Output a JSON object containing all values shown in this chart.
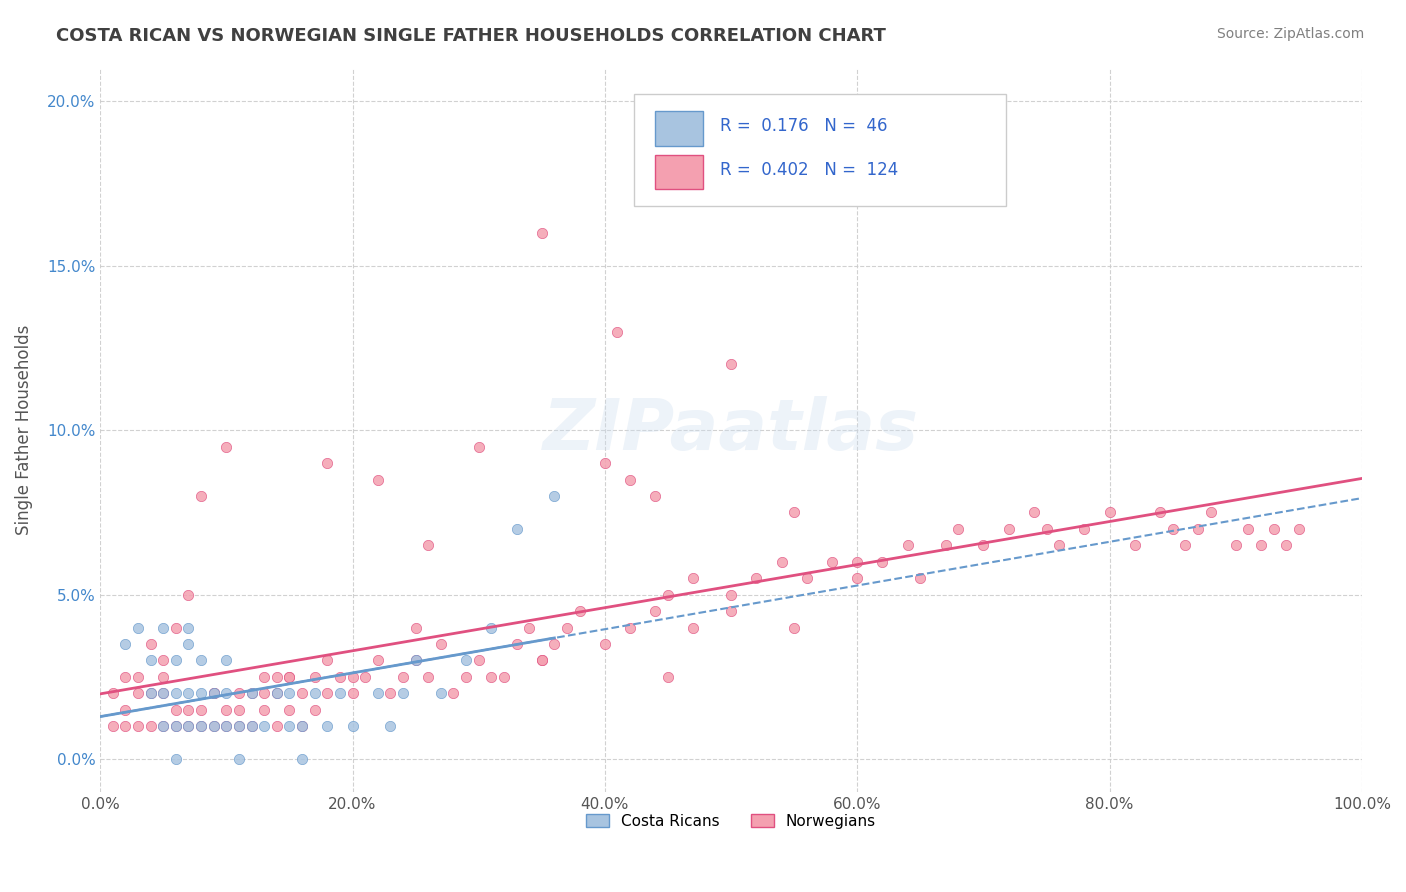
{
  "title": "COSTA RICAN VS NORWEGIAN SINGLE FATHER HOUSEHOLDS CORRELATION CHART",
  "source": "Source: ZipAtlas.com",
  "ylabel": "Single Father Households",
  "xlim": [
    0.0,
    1.0
  ],
  "ylim": [
    -0.01,
    0.21
  ],
  "xtick_labels": [
    "0.0%",
    "20.0%",
    "40.0%",
    "60.0%",
    "80.0%",
    "100.0%"
  ],
  "xtick_vals": [
    0.0,
    0.2,
    0.4,
    0.6,
    0.8,
    1.0
  ],
  "ytick_labels": [
    "0.0%",
    "5.0%",
    "10.0%",
    "15.0%",
    "20.0%"
  ],
  "ytick_vals": [
    0.0,
    0.05,
    0.1,
    0.15,
    0.2
  ],
  "legend_label1": "Costa Ricans",
  "legend_label2": "Norwegians",
  "color1": "#a8c4e0",
  "color2": "#f4a0b0",
  "line_color1": "#6699cc",
  "line_color2": "#e05080",
  "r1": 0.176,
  "n1": 46,
  "r2": 0.402,
  "n2": 124,
  "background_color": "#ffffff",
  "grid_color": "#cccccc",
  "title_color": "#404040",
  "source_color": "#808080",
  "costa_rican_x": [
    0.02,
    0.03,
    0.04,
    0.04,
    0.05,
    0.05,
    0.05,
    0.06,
    0.06,
    0.06,
    0.06,
    0.07,
    0.07,
    0.07,
    0.07,
    0.08,
    0.08,
    0.08,
    0.09,
    0.09,
    0.1,
    0.1,
    0.1,
    0.11,
    0.11,
    0.12,
    0.12,
    0.13,
    0.14,
    0.15,
    0.15,
    0.16,
    0.16,
    0.17,
    0.18,
    0.19,
    0.2,
    0.22,
    0.23,
    0.24,
    0.25,
    0.27,
    0.29,
    0.31,
    0.33,
    0.36
  ],
  "costa_rican_y": [
    0.035,
    0.04,
    0.02,
    0.03,
    0.01,
    0.02,
    0.04,
    0.0,
    0.01,
    0.02,
    0.03,
    0.01,
    0.02,
    0.035,
    0.04,
    0.01,
    0.02,
    0.03,
    0.01,
    0.02,
    0.01,
    0.02,
    0.03,
    0.0,
    0.01,
    0.01,
    0.02,
    0.01,
    0.02,
    0.01,
    0.02,
    0.0,
    0.01,
    0.02,
    0.01,
    0.02,
    0.01,
    0.02,
    0.01,
    0.02,
    0.03,
    0.02,
    0.03,
    0.04,
    0.07,
    0.08
  ],
  "norwegian_x": [
    0.01,
    0.01,
    0.02,
    0.02,
    0.03,
    0.03,
    0.04,
    0.04,
    0.05,
    0.05,
    0.05,
    0.06,
    0.06,
    0.07,
    0.07,
    0.08,
    0.08,
    0.09,
    0.09,
    0.1,
    0.1,
    0.11,
    0.11,
    0.12,
    0.12,
    0.13,
    0.13,
    0.14,
    0.14,
    0.15,
    0.15,
    0.16,
    0.16,
    0.17,
    0.17,
    0.18,
    0.18,
    0.19,
    0.2,
    0.21,
    0.22,
    0.23,
    0.24,
    0.25,
    0.26,
    0.27,
    0.28,
    0.29,
    0.3,
    0.31,
    0.32,
    0.33,
    0.34,
    0.35,
    0.36,
    0.37,
    0.38,
    0.4,
    0.42,
    0.44,
    0.45,
    0.47,
    0.5,
    0.52,
    0.54,
    0.56,
    0.58,
    0.6,
    0.62,
    0.64,
    0.65,
    0.67,
    0.68,
    0.7,
    0.72,
    0.74,
    0.75,
    0.76,
    0.78,
    0.8,
    0.82,
    0.84,
    0.85,
    0.86,
    0.87,
    0.88,
    0.9,
    0.91,
    0.92,
    0.93,
    0.94,
    0.95,
    0.04,
    0.06,
    0.08,
    0.1,
    0.14,
    0.18,
    0.22,
    0.26,
    0.3,
    0.35,
    0.41,
    0.47,
    0.4,
    0.42,
    0.44,
    0.5,
    0.55,
    0.6,
    0.02,
    0.03,
    0.05,
    0.07,
    0.09,
    0.11,
    0.13,
    0.15,
    0.2,
    0.25,
    0.35,
    0.45,
    0.5,
    0.55
  ],
  "norwegian_y": [
    0.01,
    0.02,
    0.015,
    0.025,
    0.01,
    0.02,
    0.01,
    0.02,
    0.01,
    0.02,
    0.03,
    0.01,
    0.015,
    0.01,
    0.015,
    0.01,
    0.015,
    0.01,
    0.02,
    0.01,
    0.015,
    0.01,
    0.02,
    0.01,
    0.02,
    0.015,
    0.025,
    0.01,
    0.02,
    0.015,
    0.025,
    0.01,
    0.02,
    0.015,
    0.025,
    0.02,
    0.03,
    0.025,
    0.02,
    0.025,
    0.03,
    0.02,
    0.025,
    0.03,
    0.025,
    0.035,
    0.02,
    0.025,
    0.03,
    0.025,
    0.025,
    0.035,
    0.04,
    0.03,
    0.035,
    0.04,
    0.045,
    0.035,
    0.04,
    0.045,
    0.05,
    0.04,
    0.05,
    0.055,
    0.06,
    0.055,
    0.06,
    0.055,
    0.06,
    0.065,
    0.055,
    0.065,
    0.07,
    0.065,
    0.07,
    0.075,
    0.07,
    0.065,
    0.07,
    0.075,
    0.065,
    0.075,
    0.07,
    0.065,
    0.07,
    0.075,
    0.065,
    0.07,
    0.065,
    0.07,
    0.065,
    0.07,
    0.035,
    0.04,
    0.08,
    0.095,
    0.025,
    0.09,
    0.085,
    0.065,
    0.095,
    0.16,
    0.13,
    0.055,
    0.09,
    0.085,
    0.08,
    0.045,
    0.075,
    0.06,
    0.01,
    0.025,
    0.025,
    0.05,
    0.02,
    0.015,
    0.02,
    0.025,
    0.025,
    0.04,
    0.03,
    0.025,
    0.12,
    0.04
  ]
}
